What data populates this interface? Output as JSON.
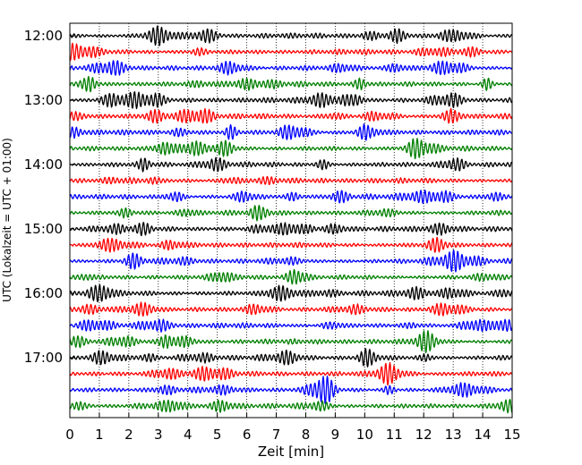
{
  "chart_data": {
    "type": "line",
    "title": "",
    "xlabel": "Zeit  [min]",
    "ylabel": "UTC (Lokalzeit = UTC + 01:00)",
    "xlim": [
      0,
      15
    ],
    "x_ticks": [
      "0",
      "1",
      "2",
      "3",
      "4",
      "5",
      "6",
      "7",
      "8",
      "9",
      "10",
      "11",
      "12",
      "13",
      "14",
      "15"
    ],
    "y_ticks": [
      "12:00",
      "13:00",
      "14:00",
      "15:00",
      "16:00",
      "17:00"
    ],
    "grid": "vertical dotted",
    "trace_interval_min": 15,
    "trace_colors": [
      "#000000",
      "#ff0000",
      "#0000ff",
      "#008000"
    ],
    "traces": [
      {
        "start": "12:00",
        "color": "#000000"
      },
      {
        "start": "12:15",
        "color": "#ff0000"
      },
      {
        "start": "12:30",
        "color": "#0000ff"
      },
      {
        "start": "12:45",
        "color": "#008000"
      },
      {
        "start": "13:00",
        "color": "#000000"
      },
      {
        "start": "13:15",
        "color": "#ff0000"
      },
      {
        "start": "13:30",
        "color": "#0000ff"
      },
      {
        "start": "13:45",
        "color": "#008000"
      },
      {
        "start": "14:00",
        "color": "#000000"
      },
      {
        "start": "14:15",
        "color": "#ff0000"
      },
      {
        "start": "14:30",
        "color": "#0000ff"
      },
      {
        "start": "14:45",
        "color": "#008000"
      },
      {
        "start": "15:00",
        "color": "#000000"
      },
      {
        "start": "15:15",
        "color": "#ff0000"
      },
      {
        "start": "15:30",
        "color": "#0000ff"
      },
      {
        "start": "15:45",
        "color": "#008000"
      },
      {
        "start": "16:00",
        "color": "#000000"
      },
      {
        "start": "16:15",
        "color": "#ff0000"
      },
      {
        "start": "16:30",
        "color": "#0000ff"
      },
      {
        "start": "16:45",
        "color": "#008000"
      },
      {
        "start": "17:00",
        "color": "#000000"
      },
      {
        "start": "17:15",
        "color": "#ff0000"
      },
      {
        "start": "17:30",
        "color": "#0000ff"
      },
      {
        "start": "17:45",
        "color": "#008000"
      }
    ]
  }
}
